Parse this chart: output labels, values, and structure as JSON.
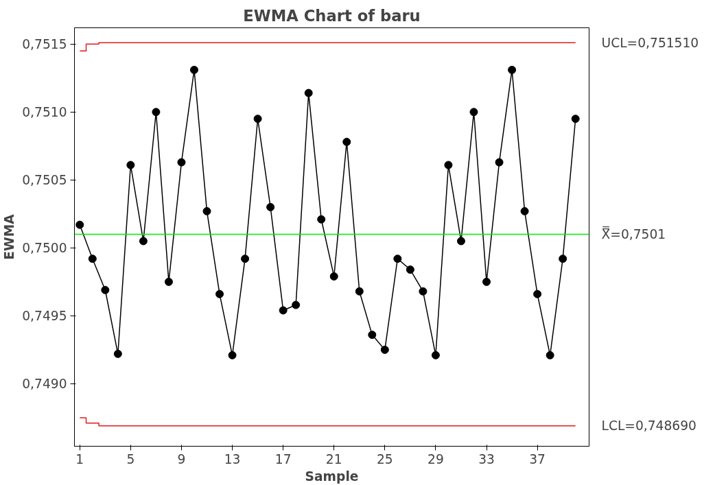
{
  "chart_data": {
    "type": "line",
    "title": "EWMA Chart of baru",
    "xlabel": "Sample",
    "ylabel": "EWMA",
    "x": [
      1,
      2,
      3,
      4,
      5,
      6,
      7,
      8,
      9,
      10,
      11,
      12,
      13,
      14,
      15,
      16,
      17,
      18,
      19,
      20,
      21,
      22,
      23,
      24,
      25,
      26,
      27,
      28,
      29,
      30,
      31,
      32,
      33,
      34,
      35,
      36,
      37,
      38,
      39,
      40
    ],
    "series": [
      {
        "color": "#000000",
        "marker": "circle",
        "values": [
          0.75017,
          0.74992,
          0.74969,
          0.74922,
          0.75061,
          0.75005,
          0.751,
          0.74975,
          0.75063,
          0.75131,
          0.75027,
          0.74966,
          0.74921,
          0.74992,
          0.75095,
          0.7503,
          0.74954,
          0.74958,
          0.75114,
          0.75021,
          0.74979,
          0.75078,
          0.74968,
          0.74936,
          0.74925,
          0.74992,
          0.74984,
          0.74968,
          0.74921,
          0.75061,
          0.75005,
          0.751,
          0.74975,
          0.75063,
          0.75131,
          0.75027,
          0.74966,
          0.74921,
          0.74992,
          0.75095
        ]
      },
      {
        "type": "step",
        "name": "UCL=0,751510",
        "color": "#e31a1c",
        "marker": "none",
        "values": [
          0.75145,
          0.7515,
          0.75151,
          0.75151,
          0.75151,
          0.75151,
          0.75151,
          0.75151,
          0.75151,
          0.75151,
          0.75151,
          0.75151,
          0.75151,
          0.75151,
          0.75151,
          0.75151,
          0.75151,
          0.75151,
          0.75151,
          0.75151,
          0.75151,
          0.75151,
          0.75151,
          0.75151,
          0.75151,
          0.75151,
          0.75151,
          0.75151,
          0.75151,
          0.75151,
          0.75151,
          0.75151,
          0.75151,
          0.75151,
          0.75151,
          0.75151,
          0.75151,
          0.75151,
          0.75151,
          0.75151
        ]
      },
      {
        "type": "step",
        "name": "LCL=0,748690",
        "color": "#e31a1c",
        "marker": "none",
        "values": [
          0.74875,
          0.74871,
          0.74869,
          0.74869,
          0.74869,
          0.74869,
          0.74869,
          0.74869,
          0.74869,
          0.74869,
          0.74869,
          0.74869,
          0.74869,
          0.74869,
          0.74869,
          0.74869,
          0.74869,
          0.74869,
          0.74869,
          0.74869,
          0.74869,
          0.74869,
          0.74869,
          0.74869,
          0.74869,
          0.74869,
          0.74869,
          0.74869,
          0.74869,
          0.74869,
          0.74869,
          0.74869,
          0.74869,
          0.74869,
          0.74869,
          0.74869,
          0.74869,
          0.74869,
          0.74869,
          0.74869
        ]
      }
    ],
    "ref_lines": [
      {
        "axis": "y",
        "value": 0.7501,
        "color": "#00ee00",
        "label": "X̿=0,7501"
      }
    ],
    "xlim": [
      0.58,
      41.07
    ],
    "ylim": [
      0.74854,
      0.75162
    ],
    "xticks": [
      1,
      5,
      9,
      13,
      17,
      21,
      25,
      29,
      33,
      37
    ],
    "yticks": [
      {
        "value": 0.749,
        "label": "0,7490"
      },
      {
        "value": 0.7495,
        "label": "0,7495"
      },
      {
        "value": 0.75,
        "label": "0,7500"
      },
      {
        "value": 0.7505,
        "label": "0,7505"
      },
      {
        "value": 0.751,
        "label": "0,7510"
      },
      {
        "value": 0.7515,
        "label": "0,7515"
      }
    ],
    "grid": false,
    "line_style": "solid"
  }
}
